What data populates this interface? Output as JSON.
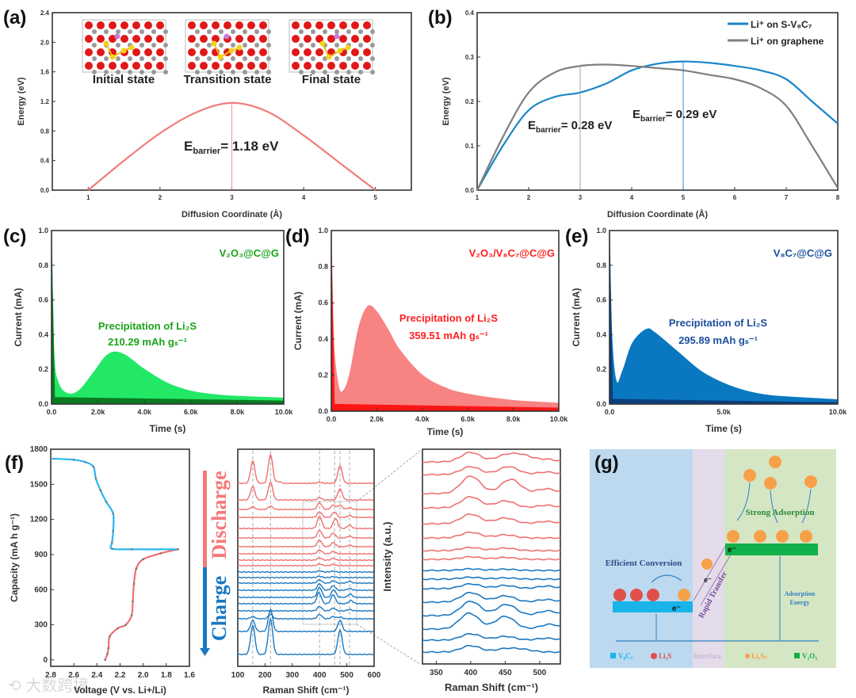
{
  "panel_labels": [
    "(a)",
    "(b)",
    "(c)",
    "(d)",
    "(e)",
    "(f)",
    "(g)"
  ],
  "watermark": "大数跨境",
  "chart_data": [
    {
      "type": "line",
      "panel": "(a)",
      "xlabel": "Diffusion Coordinate (Å)",
      "ylabel": "Energy (eV)",
      "xlim": [
        0.5,
        5.5
      ],
      "ylim": [
        0,
        2.4
      ],
      "xticks": [
        1,
        2,
        3,
        4,
        5
      ],
      "xtick_labels": [
        "1",
        "2",
        "3",
        "4",
        "5"
      ],
      "yticks": [
        0,
        0.4,
        0.8,
        1.2,
        1.6,
        2.0,
        2.4
      ],
      "ytick_labels": [
        "0.0",
        "0.4",
        "0.8",
        "1.2",
        "1.6",
        "2.0",
        "2.4"
      ],
      "series": [
        {
          "name": "barrier",
          "color": "#f07c7c",
          "x": [
            1,
            1.5,
            2,
            2.5,
            3,
            3.5,
            4,
            4.5,
            5
          ],
          "y": [
            0,
            0.4,
            0.77,
            1.05,
            1.18,
            1.06,
            0.74,
            0.37,
            0
          ]
        }
      ],
      "marker_x": 3,
      "marker_y": 1.18,
      "annotation": {
        "E": "E",
        "sub": "barrier",
        "value": "= 1.18 eV"
      },
      "insets": [
        "Initial state",
        "Transition state",
        "Final state"
      ]
    },
    {
      "type": "line",
      "panel": "(b)",
      "xlabel": "Diffusion Coordinate (Å)",
      "ylabel": "Energy (eV)",
      "xlim": [
        1,
        8
      ],
      "ylim": [
        0,
        0.4
      ],
      "xticks": [
        1,
        2,
        3,
        4,
        5,
        6,
        7,
        8
      ],
      "xtick_labels": [
        "1",
        "2",
        "3",
        "4",
        "5",
        "6",
        "7",
        "8"
      ],
      "yticks": [
        0,
        0.1,
        0.2,
        0.3,
        0.4
      ],
      "ytick_labels": [
        "0.0",
        "0.1",
        "0.2",
        "0.3",
        "0.4"
      ],
      "legend_position": "top-right",
      "series": [
        {
          "name": "Li⁺ on S-V₈C₇",
          "color": "#1a86c8",
          "x": [
            1,
            1.5,
            2,
            2.5,
            3,
            3.5,
            4,
            4.5,
            5,
            5.5,
            6,
            6.5,
            7,
            7.5,
            8
          ],
          "y": [
            0,
            0.1,
            0.18,
            0.21,
            0.22,
            0.24,
            0.27,
            0.285,
            0.29,
            0.287,
            0.28,
            0.27,
            0.25,
            0.2,
            0.15
          ]
        },
        {
          "name": "Li⁺ on graphene",
          "color": "#7f7f7f",
          "x": [
            1,
            1.5,
            2,
            2.5,
            3,
            3.5,
            4,
            4.5,
            5,
            5.5,
            6,
            6.5,
            7,
            7.5,
            8
          ],
          "y": [
            0,
            0.12,
            0.22,
            0.265,
            0.28,
            0.283,
            0.28,
            0.275,
            0.27,
            0.26,
            0.25,
            0.23,
            0.19,
            0.1,
            0.005
          ]
        }
      ],
      "annotations": [
        {
          "E": "E",
          "sub": "barrier",
          "value": "= 0.28 eV",
          "x": 3,
          "y": 0.28,
          "color": "#999999"
        },
        {
          "E": "E",
          "sub": "barrier",
          "value": "= 0.29 eV",
          "x": 5,
          "y": 0.29,
          "color": "#1a86c8"
        }
      ]
    },
    {
      "type": "area",
      "panel": "(c)",
      "title": "V₂O₃@C@G",
      "title_color": "#1aa31a",
      "xlabel": "Time (s)",
      "ylabel": "Current (mA)",
      "xlim": [
        0,
        10000
      ],
      "ylim": [
        0,
        1
      ],
      "xticks": [
        0,
        2000,
        4000,
        6000,
        8000,
        10000
      ],
      "xtick_labels": [
        "0.0",
        "2.0k",
        "4.0k",
        "6.0k",
        "8.0k",
        "10.0k"
      ],
      "yticks": [
        0,
        0.2,
        0.4,
        0.6,
        0.8,
        1.0
      ],
      "ytick_labels": [
        "0.0",
        "0.2",
        "0.4",
        "0.6",
        "0.8",
        "1.0"
      ],
      "fill_color": "#22e866",
      "base_color": "#0b7a20",
      "x": [
        0,
        100,
        300,
        700,
        1200,
        1800,
        2300,
        2700,
        3200,
        4000,
        5000,
        6000,
        7000,
        8000,
        10000
      ],
      "y": [
        1.0,
        0.3,
        0.12,
        0.06,
        0.08,
        0.18,
        0.27,
        0.3,
        0.28,
        0.2,
        0.12,
        0.075,
        0.055,
        0.045,
        0.035
      ],
      "baseline": [
        0.04,
        0.02
      ],
      "label_line1": "Precipitation of Li₂S",
      "label_line2": "210.29 mAh gₛ⁻¹",
      "capacity": 210.29
    },
    {
      "type": "area",
      "panel": "(d)",
      "title": "V₂O₃/V₈C₇@C@G",
      "title_color": "#ff2020",
      "xlabel": "Time (s)",
      "ylabel": "Current (mA)",
      "xlim": [
        0,
        10000
      ],
      "ylim": [
        0,
        1
      ],
      "xticks": [
        0,
        2000,
        4000,
        6000,
        8000,
        10000
      ],
      "xtick_labels": [
        "0.0",
        "2.0k",
        "4.0k",
        "6.0k",
        "8.0k",
        "10.0k"
      ],
      "yticks": [
        0,
        0.2,
        0.4,
        0.6,
        0.8,
        1.0
      ],
      "ytick_labels": [
        "0.0",
        "0.2",
        "0.4",
        "0.6",
        "0.8",
        "1.0"
      ],
      "fill_color": "#f88383",
      "base_color": "#ff1515",
      "x": [
        0,
        100,
        300,
        500,
        800,
        1200,
        1600,
        2000,
        2500,
        3000,
        4000,
        5000,
        6000,
        8000,
        10000
      ],
      "y": [
        1.0,
        0.4,
        0.15,
        0.11,
        0.2,
        0.46,
        0.58,
        0.55,
        0.45,
        0.34,
        0.2,
        0.13,
        0.095,
        0.06,
        0.045
      ],
      "baseline": [
        0.04,
        0.02
      ],
      "label_line1": "Precipitation of Li₂S",
      "label_line2": "359.51 mAh gₛ⁻¹",
      "capacity": 359.51
    },
    {
      "type": "area",
      "panel": "(e)",
      "title": "V₈C₇@C@G",
      "title_color": "#1b4f9c",
      "xlabel": "Time (s)",
      "ylabel": "Current (mA)",
      "xlim": [
        0,
        10000
      ],
      "ylim": [
        0,
        1
      ],
      "xticks": [
        0,
        5000,
        10000
      ],
      "xtick_labels": [
        "0.0",
        "5.0k",
        "10.0k"
      ],
      "yticks": [
        0,
        0.2,
        0.4,
        0.6,
        0.8,
        1.0
      ],
      "ytick_labels": [
        "0.0",
        "0.2",
        "0.4",
        "0.6",
        "0.8",
        "1.0"
      ],
      "fill_color": "#0a78c0",
      "base_color": "#0a3f80",
      "x": [
        0,
        100,
        300,
        600,
        1000,
        1600,
        2000,
        3000,
        4000,
        5000,
        6000,
        7000,
        8000,
        10000
      ],
      "y": [
        1.0,
        0.4,
        0.13,
        0.2,
        0.35,
        0.43,
        0.41,
        0.3,
        0.19,
        0.12,
        0.075,
        0.05,
        0.04,
        0.025
      ],
      "baseline": [
        0.03,
        0.01
      ],
      "label_line1": "Precipitation of Li₂S",
      "label_line2": "295.89 mAh gₛ⁻¹",
      "capacity": 295.89
    },
    {
      "type": "line",
      "panel": "(f)",
      "xlabel": "Voltage (V vs. Li+/Li)",
      "ylabel": "Capacity (mA h g⁻¹)",
      "xlim": [
        2.8,
        1.6
      ],
      "ylim": [
        -55,
        1800
      ],
      "xticks": [
        2.8,
        2.6,
        2.4,
        2.2,
        2.0,
        1.8,
        1.6
      ],
      "xtick_labels": [
        "2.8",
        "2.6",
        "2.4",
        "2.2",
        "2.0",
        "1.8",
        "1.6"
      ],
      "yticks": [
        0,
        300,
        600,
        900,
        1200,
        1500,
        1800
      ],
      "ytick_labels": [
        "0",
        "300",
        "600",
        "900",
        "1200",
        "1500",
        "1800"
      ],
      "series": [
        {
          "name": "Discharge",
          "color": "#f07070",
          "x": [
            2.33,
            2.31,
            2.3,
            2.29,
            2.22,
            2.15,
            2.1,
            2.09,
            2.08,
            2.06,
            2.0,
            1.85,
            1.7
          ],
          "y": [
            0,
            50,
            100,
            200,
            270,
            300,
            380,
            500,
            650,
            780,
            860,
            910,
            945
          ]
        },
        {
          "name": "Charge",
          "color": "#29b6f0",
          "x": [
            1.7,
            2.1,
            2.27,
            2.27,
            2.26,
            2.26,
            2.32,
            2.37,
            2.41,
            2.43,
            2.5,
            2.6,
            2.8
          ],
          "y": [
            945,
            945,
            950,
            1000,
            1100,
            1250,
            1350,
            1450,
            1550,
            1650,
            1690,
            1710,
            1720
          ]
        }
      ]
    },
    {
      "type": "line",
      "panel": "(f) Raman",
      "xlabel": "Raman Shift (cm⁻¹)",
      "ylabel": "",
      "xlim": [
        100,
        600
      ],
      "xticks": [
        100,
        200,
        300,
        400,
        500,
        600
      ],
      "xtick_labels": [
        "100",
        "200",
        "300",
        "400",
        "500",
        "600"
      ],
      "reference_lines": [
        155,
        220,
        400,
        455,
        475,
        510
      ],
      "discharge_label": "Discharge",
      "charge_label": "Charge",
      "discharge_color": "#f07070",
      "charge_color": "#1a78c2",
      "peak_width": 8,
      "spectra": [
        {
          "phase": "discharge",
          "peaks": [
            [
              155,
              1.0
            ],
            [
              220,
              1.3
            ],
            [
              250,
              0.08
            ],
            [
              400,
              0.05
            ],
            [
              475,
              0.8
            ]
          ]
        },
        {
          "phase": "discharge",
          "peaks": [
            [
              155,
              0.6
            ],
            [
              220,
              0.8
            ],
            [
              400,
              0.1
            ],
            [
              475,
              0.5
            ]
          ]
        },
        {
          "phase": "discharge",
          "peaks": [
            [
              155,
              0.12
            ],
            [
              220,
              0.15
            ],
            [
              400,
              0.3
            ],
            [
              450,
              0.2
            ],
            [
              475,
              0.2
            ],
            [
              510,
              0.08
            ]
          ]
        },
        {
          "phase": "discharge",
          "peaks": [
            [
              400,
              0.25
            ],
            [
              455,
              0.25
            ],
            [
              510,
              0.08
            ]
          ]
        },
        {
          "phase": "discharge",
          "peaks": [
            [
              400,
              0.55
            ],
            [
              458,
              0.45
            ],
            [
              510,
              0.15
            ]
          ]
        },
        {
          "phase": "discharge",
          "peaks": [
            [
              400,
              0.35
            ],
            [
              450,
              0.22
            ],
            [
              510,
              0.08
            ]
          ]
        },
        {
          "phase": "discharge",
          "peaks": [
            [
              400,
              0.3
            ],
            [
              450,
              0.18
            ],
            [
              510,
              0.07
            ]
          ]
        },
        {
          "phase": "discharge",
          "peaks": [
            [
              400,
              0.18
            ],
            [
              450,
              0.1
            ]
          ]
        },
        {
          "phase": "discharge",
          "peaks": [
            [
              400,
              0.1
            ],
            [
              450,
              0.08
            ]
          ]
        },
        {
          "phase": "discharge",
          "peaks": [
            [
              400,
              0.08
            ],
            [
              450,
              0.06
            ]
          ]
        },
        {
          "phase": "charge",
          "peaks": [
            [
              400,
              0.05
            ],
            [
              450,
              0.04
            ]
          ]
        },
        {
          "phase": "charge",
          "peaks": [
            [
              400,
              0.06
            ],
            [
              450,
              0.04
            ]
          ]
        },
        {
          "phase": "charge",
          "peaks": [
            [
              400,
              0.15
            ],
            [
              450,
              0.1
            ],
            [
              510,
              0.08
            ]
          ]
        },
        {
          "phase": "charge",
          "peaks": [
            [
              400,
              0.3
            ],
            [
              450,
              0.2
            ],
            [
              510,
              0.08
            ]
          ]
        },
        {
          "phase": "charge",
          "peaks": [
            [
              400,
              0.45
            ],
            [
              452,
              0.35
            ],
            [
              512,
              0.15
            ]
          ]
        },
        {
          "phase": "charge",
          "peaks": [
            [
              398,
              0.5
            ],
            [
              450,
              0.4
            ],
            [
              515,
              0.15
            ]
          ]
        },
        {
          "phase": "charge",
          "peaks": [
            [
              400,
              0.2
            ],
            [
              450,
              0.12
            ],
            [
              510,
              0.06
            ]
          ]
        },
        {
          "phase": "charge",
          "peaks": [
            [
              155,
              0.1
            ],
            [
              220,
              0.2
            ],
            [
              400,
              0.2
            ],
            [
              450,
              0.1
            ],
            [
              475,
              0.08
            ]
          ]
        },
        {
          "phase": "charge",
          "peaks": [
            [
              155,
              0.5
            ],
            [
              220,
              1.0
            ],
            [
              475,
              0.5
            ]
          ]
        },
        {
          "phase": "charge",
          "peaks": [
            [
              155,
              1.3
            ],
            [
              220,
              1.6
            ],
            [
              475,
              1.1
            ]
          ]
        }
      ]
    },
    {
      "type": "line",
      "panel": "(f) Raman zoom",
      "xlabel": "Raman Shift (cm⁻¹)",
      "ylabel": "Intensity (a.u.)",
      "xlim": [
        330,
        530
      ],
      "xticks": [
        350,
        400,
        450,
        500
      ],
      "xtick_labels": [
        "350",
        "400",
        "450",
        "500"
      ]
    }
  ],
  "diagram": {
    "panel": "(g)",
    "strong_adsorption": "Strong Adsorption",
    "efficient_conversion": "Efficient Conversion",
    "rapid_transfer": "Rapid Transfer",
    "adsorption_energy_1": "Adsorption",
    "adsorption_energy_2": "Energy",
    "electron": "e⁻",
    "legend": [
      {
        "label": "V₈C₇",
        "color": "#18b4ea",
        "shape": "square"
      },
      {
        "label": "Li₂S",
        "color": "#e0504a",
        "shape": "circle"
      },
      {
        "label": "Interface",
        "color": "#c9b4d6",
        "shape": "none"
      },
      {
        "label": "Li₂Sₙ",
        "color": "#f7a04a",
        "shape": "circle"
      },
      {
        "label": "V₂O₃",
        "color": "#12b04a",
        "shape": "square"
      }
    ],
    "colors": {
      "left_bg": "#bcd9f0",
      "interface_bg": "#e4dcea",
      "right_bg": "#d5e6c4",
      "text_blue": "#2c4f8a",
      "text_green": "#2a8a3a",
      "arrow": "#2f7fc1",
      "orange": "#f7a04a"
    }
  }
}
